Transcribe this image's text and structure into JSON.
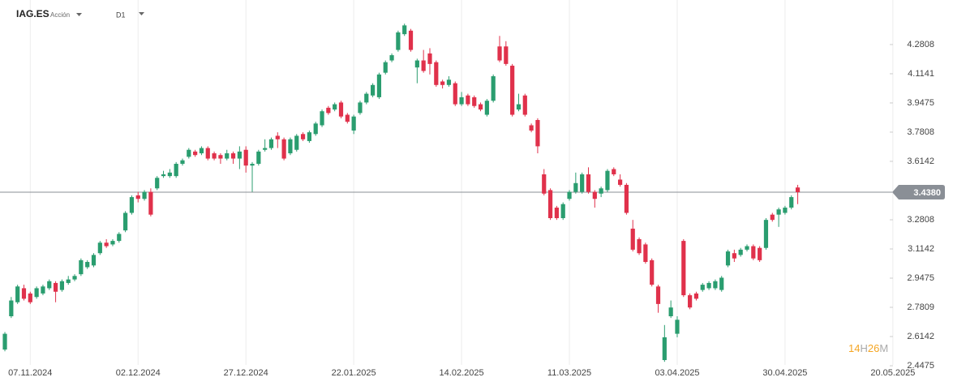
{
  "header": {
    "symbol": "IAG.ES",
    "instrument_type": "Acción",
    "timeframe": "D1"
  },
  "countdown": {
    "hours": 14,
    "hours_unit": "H",
    "minutes": 26,
    "minutes_unit": "M"
  },
  "chart_data": {
    "type": "candlestick",
    "up_color": "#2a9d6f",
    "down_color": "#e0314b",
    "xlim": [
      -0.77,
      139.25
    ],
    "xticks": [
      {
        "value": 4,
        "label": "07.11.2024"
      },
      {
        "value": 21,
        "label": "02.12.2024"
      },
      {
        "value": 38,
        "label": "27.12.2024"
      },
      {
        "value": 55,
        "label": "22.01.2025"
      },
      {
        "value": 72,
        "label": "14.02.2025"
      },
      {
        "value": 89,
        "label": "11.03.2025"
      },
      {
        "value": 106,
        "label": "03.04.2025"
      },
      {
        "value": 123,
        "label": "30.04.2025"
      },
      {
        "value": 140,
        "label": "20.05.2025"
      }
    ],
    "ylim": [
      2.406,
      4.535
    ],
    "yticks": [
      4.2808,
      4.1141,
      3.9475,
      3.7808,
      3.6142,
      3.2808,
      3.1142,
      2.9475,
      2.7809,
      2.6142,
      2.4475
    ],
    "last_price": {
      "value": 3.438,
      "label": "3.4380"
    },
    "grid": true,
    "open": [
      2.54,
      2.73,
      2.81,
      2.89,
      2.86,
      2.84,
      2.86,
      2.89,
      2.92,
      2.88,
      2.92,
      2.94,
      2.97,
      3.01,
      3.02,
      3.09,
      3.15,
      3.14,
      3.16,
      3.22,
      3.32,
      3.42,
      3.4,
      3.44,
      3.46,
      3.53,
      3.53,
      3.53,
      3.6,
      3.64,
      3.67,
      3.66,
      3.69,
      3.66,
      3.65,
      3.63,
      3.66,
      3.63,
      3.68,
      3.59,
      3.6,
      3.68,
      3.69,
      3.76,
      3.74,
      3.66,
      3.68,
      3.77,
      3.73,
      3.77,
      3.82,
      3.92,
      3.91,
      3.95,
      3.88,
      3.79,
      3.89,
      3.95,
      3.99,
      3.98,
      4.12,
      4.19,
      4.25,
      4.34,
      4.36,
      4.15,
      4.19,
      4.23,
      4.18,
      4.07,
      4.05,
      4.06,
      3.94,
      3.99,
      3.98,
      3.94,
      3.88,
      3.96,
      4.27,
      4.27,
      4.16,
      3.91,
      3.99,
      3.82,
      3.85,
      3.54,
      3.45,
      3.35,
      3.29,
      3.4,
      3.44,
      3.44,
      3.54,
      3.44,
      3.43,
      3.45,
      3.57,
      3.51,
      3.48,
      3.23,
      3.17,
      3.14,
      3.05,
      2.9,
      2.48,
      2.73,
      2.63,
      3.16,
      2.85,
      2.86,
      2.88,
      2.89,
      2.89,
      2.88,
      3.02,
      3.09,
      3.08,
      3.11,
      3.13,
      3.12,
      3.12,
      3.31,
      3.31,
      3.32,
      3.35,
      3.465
    ],
    "high": [
      2.64,
      2.84,
      2.91,
      2.91,
      2.87,
      2.9,
      2.91,
      2.94,
      2.93,
      2.94,
      2.96,
      2.97,
      3.06,
      3.05,
      3.09,
      3.16,
      3.17,
      3.17,
      3.21,
      3.33,
      3.42,
      3.44,
      3.45,
      3.46,
      3.53,
      3.56,
      3.57,
      3.61,
      3.63,
      3.69,
      3.68,
      3.7,
      3.7,
      3.67,
      3.66,
      3.68,
      3.67,
      3.7,
      3.7,
      3.61,
      3.68,
      3.74,
      3.75,
      3.78,
      3.75,
      3.75,
      3.77,
      3.78,
      3.79,
      3.84,
      3.91,
      3.93,
      3.95,
      3.96,
      3.89,
      3.88,
      3.96,
      4.01,
      4.06,
      4.12,
      4.19,
      4.23,
      4.36,
      4.4,
      4.37,
      4.2,
      4.25,
      4.26,
      4.19,
      4.08,
      4.1,
      4.07,
      4.01,
      4.0,
      3.99,
      3.95,
      3.97,
      4.11,
      4.33,
      4.3,
      4.17,
      4.0,
      4.0,
      3.83,
      3.86,
      3.57,
      3.46,
      3.36,
      3.38,
      3.45,
      3.55,
      3.55,
      3.58,
      3.45,
      3.47,
      3.57,
      3.58,
      3.54,
      3.49,
      3.28,
      3.18,
      3.15,
      3.06,
      2.91,
      2.68,
      2.82,
      2.73,
      3.17,
      2.86,
      2.87,
      2.92,
      2.93,
      2.94,
      2.96,
      3.11,
      3.11,
      3.12,
      3.14,
      3.14,
      3.13,
      3.29,
      3.32,
      3.35,
      3.36,
      3.42,
      3.48
    ],
    "low": [
      2.53,
      2.72,
      2.8,
      2.82,
      2.8,
      2.83,
      2.85,
      2.88,
      2.81,
      2.87,
      2.91,
      2.93,
      2.96,
      3.0,
      3.01,
      3.08,
      3.12,
      3.13,
      3.15,
      3.21,
      3.31,
      3.38,
      3.39,
      3.3,
      3.45,
      3.52,
      3.52,
      3.52,
      3.59,
      3.63,
      3.64,
      3.65,
      3.62,
      3.62,
      3.6,
      3.62,
      3.6,
      3.57,
      3.55,
      3.44,
      3.59,
      3.67,
      3.68,
      3.69,
      3.62,
      3.65,
      3.67,
      3.73,
      3.72,
      3.76,
      3.81,
      3.88,
      3.9,
      3.86,
      3.83,
      3.77,
      3.88,
      3.94,
      3.98,
      3.97,
      4.11,
      4.18,
      4.24,
      4.33,
      4.24,
      4.06,
      4.12,
      4.11,
      4.04,
      4.03,
      4.04,
      3.93,
      3.93,
      3.93,
      3.92,
      3.9,
      3.87,
      3.95,
      4.18,
      4.16,
      3.87,
      3.9,
      3.87,
      3.78,
      3.66,
      3.42,
      3.28,
      3.28,
      3.28,
      3.39,
      3.43,
      3.43,
      3.43,
      3.35,
      3.41,
      3.44,
      3.53,
      3.47,
      3.31,
      3.1,
      3.08,
      3.03,
      2.9,
      2.75,
      2.47,
      2.72,
      2.61,
      2.84,
      2.77,
      2.82,
      2.87,
      2.88,
      2.88,
      2.87,
      3.01,
      3.04,
      3.07,
      3.1,
      3.05,
      3.04,
      3.11,
      3.27,
      3.24,
      3.31,
      3.34,
      3.37
    ],
    "close": [
      2.63,
      2.82,
      2.9,
      2.83,
      2.81,
      2.89,
      2.9,
      2.93,
      2.87,
      2.93,
      2.94,
      2.96,
      3.05,
      3.04,
      3.08,
      3.15,
      3.13,
      3.16,
      3.2,
      3.32,
      3.41,
      3.4,
      3.44,
      3.31,
      3.52,
      3.54,
      3.55,
      3.6,
      3.62,
      3.68,
      3.65,
      3.69,
      3.63,
      3.63,
      3.63,
      3.66,
      3.63,
      3.67,
      3.59,
      3.6,
      3.67,
      3.69,
      3.74,
      3.74,
      3.63,
      3.74,
      3.76,
      3.74,
      3.78,
      3.83,
      3.9,
      3.89,
      3.94,
      3.87,
      3.84,
      3.87,
      3.95,
      4.0,
      4.05,
      4.11,
      4.18,
      4.22,
      4.35,
      4.39,
      4.25,
      4.19,
      4.13,
      4.17,
      4.05,
      4.05,
      4.08,
      3.94,
      3.98,
      3.94,
      3.93,
      3.91,
      3.96,
      4.1,
      4.19,
      4.17,
      3.88,
      3.94,
      3.88,
      3.79,
      3.7,
      3.43,
      3.29,
      3.29,
      3.37,
      3.44,
      3.49,
      3.54,
      3.44,
      3.4,
      3.46,
      3.56,
      3.54,
      3.48,
      3.32,
      3.11,
      3.09,
      3.04,
      2.91,
      2.8,
      2.61,
      2.78,
      2.71,
      2.85,
      2.78,
      2.83,
      2.91,
      2.92,
      2.93,
      2.95,
      3.1,
      3.06,
      3.11,
      3.13,
      3.06,
      3.05,
      3.28,
      3.28,
      3.34,
      3.35,
      3.41,
      3.438
    ]
  }
}
